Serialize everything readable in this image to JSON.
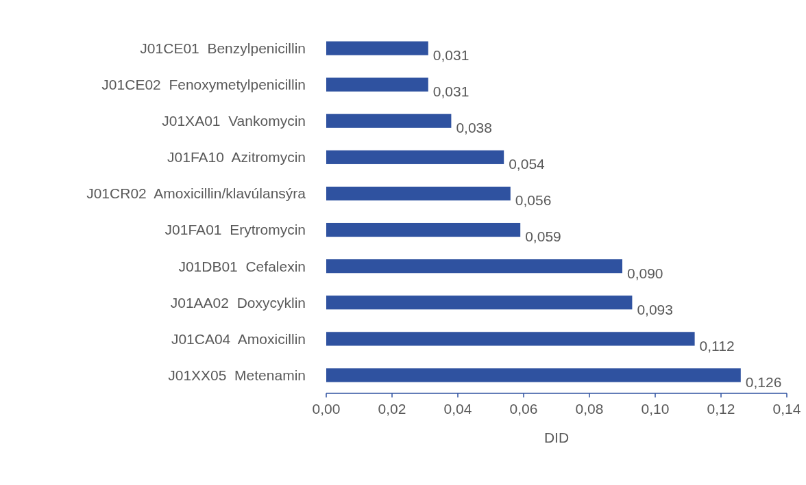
{
  "chart_data": {
    "type": "bar",
    "orientation": "horizontal",
    "xlabel": "DID",
    "categories": [
      "J01CE01  Benzylpenicillin",
      "J01CE02  Fenoxymetylpenicillin",
      "J01XA01  Vankomycin",
      "J01FA10  Azitromycin",
      "J01CR02  Amoxicillin/klavúlansýra",
      "J01FA01  Erytromycin",
      "J01DB01  Cefalexin",
      "J01AA02  Doxycyklin",
      "J01CA04  Amoxicillin",
      "J01XX05  Metenamin"
    ],
    "values": [
      0.031,
      0.031,
      0.038,
      0.054,
      0.056,
      0.059,
      0.09,
      0.093,
      0.112,
      0.126
    ],
    "value_labels": [
      "0,031",
      "0,031",
      "0,038",
      "0,054",
      "0,056",
      "0,059",
      "0,090",
      "0,093",
      "0,112",
      "0,126"
    ],
    "color": "#2f52a0",
    "xlim": [
      0,
      0.14
    ],
    "xticks": [
      {
        "value": 0,
        "label": "0,00"
      },
      {
        "value": 0.02,
        "label": "0,02"
      },
      {
        "value": 0.04,
        "label": "0,04"
      },
      {
        "value": 0.06,
        "label": "0,06"
      },
      {
        "value": 0.08,
        "label": "0,08"
      },
      {
        "value": 0.1,
        "label": "0,10"
      },
      {
        "value": 0.12,
        "label": "0,12"
      },
      {
        "value": 0.14,
        "label": "0,14"
      }
    ],
    "grid": false
  }
}
